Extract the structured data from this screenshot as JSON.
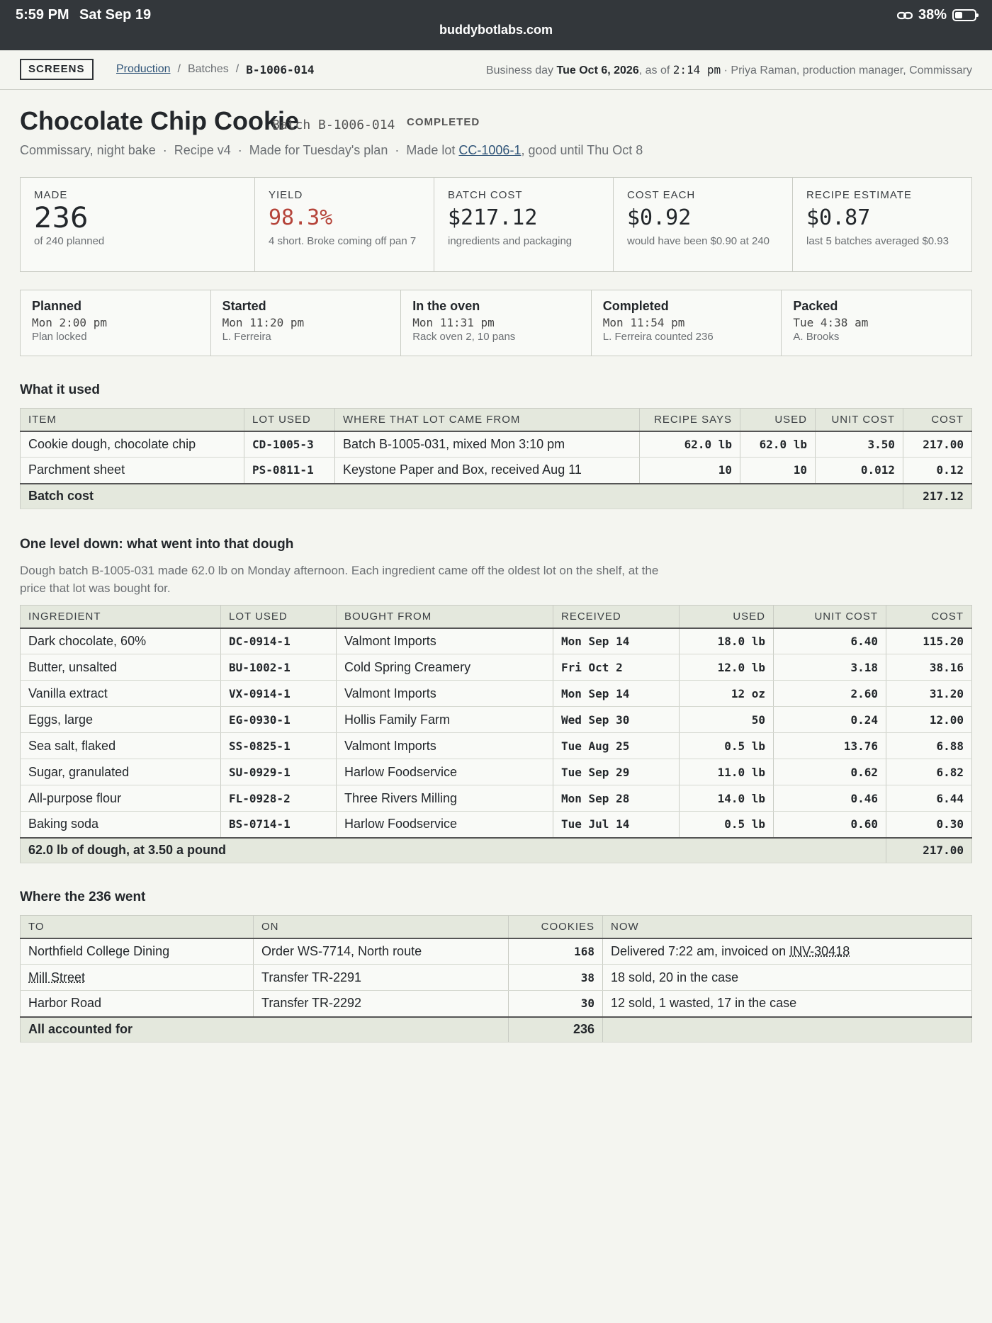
{
  "status_bar": {
    "time": "5:59 PM",
    "date": "Sat Sep 19",
    "url": "buddybotlabs.com",
    "battery": "38%"
  },
  "header": {
    "screens_label": "SCREENS",
    "breadcrumb": {
      "link": "Production",
      "sep": "/",
      "mid": "Batches",
      "current": "B-1006-014"
    },
    "bizday_prefix": "Business day",
    "bizday_date": "Tue Oct 6, 2026",
    "bizday_asof": ", as of",
    "bizday_time": "2:14 pm",
    "bizday_user": "· Priya Raman, production manager, Commissary"
  },
  "batch": {
    "title": "Chocolate Chip Cookie",
    "batch_id": "Batch B-1006-014",
    "status": "COMPLETED",
    "sub_a": "Commissary, night bake",
    "sub_b": "Recipe v4",
    "sub_c": "Made for Tuesday's plan",
    "sub_d_pre": "Made lot",
    "sub_d_lot": "CC-1006-1",
    "sub_d_post": ", good until Thu Oct 8"
  },
  "metrics": [
    {
      "label": "MADE",
      "value": "236",
      "note": "of 240 planned"
    },
    {
      "label": "YIELD",
      "value": "98.3%",
      "note": "4 short. Broke coming off pan 7"
    },
    {
      "label": "BATCH COST",
      "value": "$217.12",
      "note": "ingredients and packaging"
    },
    {
      "label": "COST EACH",
      "value": "$0.92",
      "note": "would have been $0.90 at 240"
    },
    {
      "label": "RECIPE ESTIMATE",
      "value": "$0.87",
      "note": "last 5 batches averaged $0.93"
    }
  ],
  "timeline": [
    {
      "step": "Planned",
      "when": "Mon 2:00 pm",
      "who": "Plan locked"
    },
    {
      "step": "Started",
      "when": "Mon 11:20 pm",
      "who": "L. Ferreira"
    },
    {
      "step": "In the oven",
      "when": "Mon 11:31 pm",
      "who": "Rack oven 2, 10 pans"
    },
    {
      "step": "Completed",
      "when": "Mon 11:54 pm",
      "who": "L. Ferreira counted 236"
    },
    {
      "step": "Packed",
      "when": "Tue 4:38 am",
      "who": "A. Brooks"
    }
  ],
  "used": {
    "heading": "What it used",
    "columns": [
      "ITEM",
      "LOT USED",
      "WHERE THAT LOT CAME FROM",
      "RECIPE SAYS",
      "USED",
      "UNIT COST",
      "COST"
    ],
    "rows": [
      [
        "Cookie dough, chocolate chip",
        "CD-1005-3",
        "Batch B-1005-031, mixed Mon 3:10 pm",
        "62.0 lb",
        "62.0 lb",
        "3.50",
        "217.00"
      ],
      [
        "Parchment sheet",
        "PS-0811-1",
        "Keystone Paper and Box, received Aug 11",
        "10",
        "10",
        "0.012",
        "0.12"
      ]
    ],
    "total_label": "Batch cost",
    "total_value": "217.12"
  },
  "dough": {
    "heading": "One level down: what went into that dough",
    "description": "Dough batch B-1005-031 made 62.0 lb on Monday afternoon. Each ingredient came off the oldest lot on the shelf, at the price that lot was bought for.",
    "columns": [
      "INGREDIENT",
      "LOT USED",
      "BOUGHT FROM",
      "RECEIVED",
      "USED",
      "UNIT COST",
      "COST"
    ],
    "rows": [
      [
        "Dark chocolate, 60%",
        "DC-0914-1",
        "Valmont Imports",
        "Mon Sep 14",
        "18.0 lb",
        "6.40",
        "115.20"
      ],
      [
        "Butter, unsalted",
        "BU-1002-1",
        "Cold Spring Creamery",
        "Fri Oct 2",
        "12.0 lb",
        "3.18",
        "38.16"
      ],
      [
        "Vanilla extract",
        "VX-0914-1",
        "Valmont Imports",
        "Mon Sep 14",
        "12 oz",
        "2.60",
        "31.20"
      ],
      [
        "Eggs, large",
        "EG-0930-1",
        "Hollis Family Farm",
        "Wed Sep 30",
        "50",
        "0.24",
        "12.00"
      ],
      [
        "Sea salt, flaked",
        "SS-0825-1",
        "Valmont Imports",
        "Tue Aug 25",
        "0.5 lb",
        "13.76",
        "6.88"
      ],
      [
        "Sugar, granulated",
        "SU-0929-1",
        "Harlow Foodservice",
        "Tue Sep 29",
        "11.0 lb",
        "0.62",
        "6.82"
      ],
      [
        "All-purpose flour",
        "FL-0928-2",
        "Three Rivers Milling",
        "Mon Sep 28",
        "14.0 lb",
        "0.46",
        "6.44"
      ],
      [
        "Baking soda",
        "BS-0714-1",
        "Harlow Foodservice",
        "Tue Jul 14",
        "0.5 lb",
        "0.60",
        "0.30"
      ]
    ],
    "total_label": "62.0 lb of dough, at 3.50 a pound",
    "total_value": "217.00"
  },
  "went": {
    "heading": "Where the 236 went",
    "columns": [
      "TO",
      "ON",
      "COOKIES",
      "NOW"
    ],
    "rows": [
      {
        "to": "Northfield College Dining",
        "on": "Order WS-7714, North route",
        "cookies": "168",
        "now": "Delivered 7:22 am, invoiced on",
        "inv": "INV-30418"
      },
      {
        "to": "Mill Street",
        "on": "Transfer TR-2291",
        "cookies": "38",
        "now": "18 sold, 20 in the case",
        "inv": ""
      },
      {
        "to": "Harbor Road",
        "on": "Transfer TR-2292",
        "cookies": "30",
        "now": "12 sold, 1 wasted, 17 in the case",
        "inv": ""
      }
    ],
    "total_label": "All accounted for",
    "total_value": "236"
  }
}
